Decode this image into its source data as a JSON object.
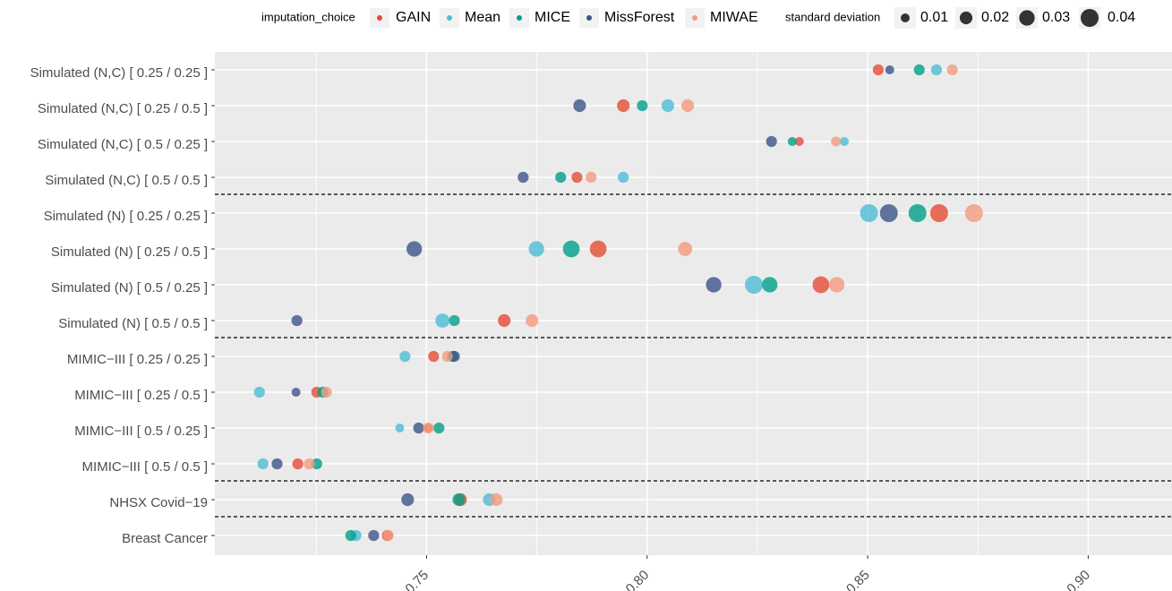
{
  "chart_data": {
    "type": "scatter",
    "legend_title": "imputation_choice",
    "size_legend_title": "standard deviation",
    "size_legend": [
      0.01,
      0.02,
      0.03,
      0.04
    ],
    "categories": [
      "Simulated (N,C) [ 0.25 / 0.25 ]",
      "Simulated (N,C) [ 0.25 / 0.5 ]",
      "Simulated (N,C) [ 0.5 / 0.25 ]",
      "Simulated (N,C) [ 0.5 / 0.5 ]",
      "Simulated (N) [ 0.25 / 0.25 ]",
      "Simulated (N) [ 0.25 / 0.5 ]",
      "Simulated (N) [ 0.5 / 0.25 ]",
      "Simulated (N) [ 0.5 / 0.5 ]",
      "MIMIC−III [ 0.25 / 0.25 ]",
      "MIMIC−III [ 0.25 / 0.5 ]",
      "MIMIC−III [ 0.5 / 0.25 ]",
      "MIMIC−III [ 0.5 / 0.5 ]",
      "NHSX Covid−19",
      "Breast Cancer"
    ],
    "series": [
      {
        "name": "GAIN",
        "color": "#E64B35",
        "values": [
          0.8524,
          0.7946,
          0.8345,
          0.7841,
          0.8662,
          0.7889,
          0.8394,
          0.7676,
          0.7516,
          0.7251,
          0.7504,
          0.7208,
          0.7577,
          0.7411
        ],
        "sizes": [
          0.015,
          0.02,
          0.01,
          0.015,
          0.04,
          0.035,
          0.035,
          0.02,
          0.015,
          0.015,
          0.01,
          0.015,
          0.02,
          0.015
        ]
      },
      {
        "name": "Mean",
        "color": "#4DBBD5",
        "values": [
          0.8656,
          0.8047,
          0.8447,
          0.7946,
          0.8503,
          0.7749,
          0.8242,
          0.7536,
          0.7451,
          0.7121,
          0.7439,
          0.7129,
          0.7642,
          0.734
        ],
        "sizes": [
          0.015,
          0.02,
          0.01,
          0.015,
          0.04,
          0.03,
          0.04,
          0.025,
          0.015,
          0.015,
          0.01,
          0.015,
          0.02,
          0.015
        ]
      },
      {
        "name": "MICE",
        "color": "#00A087",
        "values": [
          0.8617,
          0.7989,
          0.8329,
          0.7804,
          0.8613,
          0.7828,
          0.8278,
          0.7563,
          0.7559,
          0.7265,
          0.7528,
          0.7251,
          0.7573,
          0.7328
        ],
        "sizes": [
          0.015,
          0.015,
          0.01,
          0.015,
          0.04,
          0.035,
          0.03,
          0.015,
          0.015,
          0.015,
          0.015,
          0.015,
          0.02,
          0.015
        ]
      },
      {
        "name": "MissForest",
        "color": "#3C5488",
        "values": [
          0.855,
          0.7847,
          0.8282,
          0.7719,
          0.8548,
          0.7472,
          0.8151,
          0.7206,
          0.7563,
          0.7204,
          0.7482,
          0.7161,
          0.7457,
          0.738
        ],
        "sizes": [
          0.01,
          0.02,
          0.015,
          0.015,
          0.04,
          0.03,
          0.03,
          0.015,
          0.015,
          0.01,
          0.015,
          0.015,
          0.02,
          0.015
        ]
      },
      {
        "name": "MIWAE",
        "color": "#F39B7F",
        "values": [
          0.8692,
          0.8092,
          0.8428,
          0.7873,
          0.8741,
          0.8086,
          0.843,
          0.7739,
          0.7547,
          0.7273,
          0.7504,
          0.7234,
          0.7658,
          0.7413
        ],
        "sizes": [
          0.015,
          0.02,
          0.012,
          0.015,
          0.04,
          0.025,
          0.03,
          0.02,
          0.015,
          0.015,
          0.015,
          0.015,
          0.02,
          0.015
        ]
      }
    ],
    "xlim": [
      0.702,
      0.919
    ],
    "xticks": [
      0.75,
      {
        "value": 0.8,
        "label": "0.80"
      },
      0.85,
      {
        "value": 0.9,
        "label": "0.90"
      }
    ],
    "grid": true
  }
}
